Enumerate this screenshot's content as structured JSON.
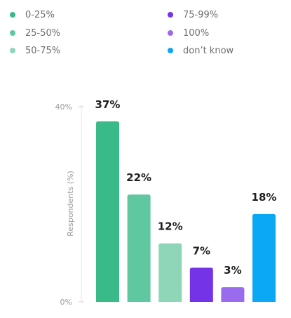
{
  "chart_data": {
    "type": "bar",
    "categories": [
      "0-25%",
      "25-50%",
      "50-75%",
      "75-99%",
      "100%",
      "don’t know"
    ],
    "values": [
      37,
      22,
      12,
      7,
      3,
      18
    ],
    "data_labels": [
      "37%",
      "22%",
      "12%",
      "7%",
      "3%",
      "18%"
    ],
    "colors": [
      "#3aba88",
      "#5fc8a0",
      "#8fd6b8",
      "#7433e6",
      "#9a6bef",
      "#0aa8f5"
    ],
    "ylabel": "Respondents (%)",
    "ylim": [
      0,
      40
    ],
    "yticks": [
      {
        "value": 40,
        "label": "40%"
      },
      {
        "value": 0,
        "label": "0%"
      }
    ],
    "grid": false,
    "legend_position": "top"
  }
}
